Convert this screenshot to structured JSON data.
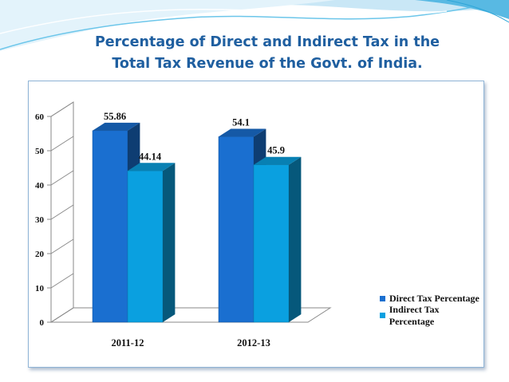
{
  "slide": {
    "title_line1": "Percentage of Direct and Indirect Tax in the",
    "title_line2": "Total Tax Revenue of the Govt. of India."
  },
  "colors": {
    "title": "#1f5fa0",
    "direct": "#1a6fd0",
    "indirect": "#0aa0e0",
    "frame": "#8fb4d6"
  },
  "chart_data": {
    "type": "bar",
    "title": "Percentage of Direct and Indirect Tax in the Total Tax Revenue of the Govt. of India.",
    "categories": [
      "2011-12",
      "2012-13"
    ],
    "series": [
      {
        "name": "Direct Tax Percentage",
        "values": [
          55.86,
          54.1
        ]
      },
      {
        "name": "Indirect Tax Percentage",
        "values": [
          44.14,
          45.9
        ]
      }
    ],
    "data_labels": [
      [
        "55.86",
        "54.1"
      ],
      [
        "44.14",
        "45.9"
      ]
    ],
    "xlabel": "",
    "ylabel": "",
    "ylim": [
      0,
      60
    ],
    "yticks": [
      0,
      10,
      20,
      30,
      40,
      50,
      60
    ],
    "grid": false,
    "legend": "right",
    "style": "3d-clustered-column"
  }
}
